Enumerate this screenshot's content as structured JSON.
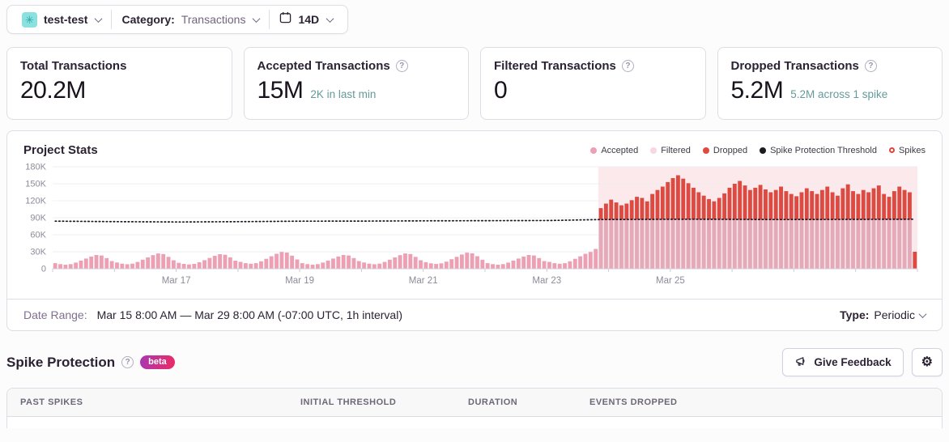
{
  "topbar": {
    "project_avatar_icon": "flower-identicon",
    "project_name": "test-test",
    "category_label": "Category:",
    "category_value": "Transactions",
    "period_value": "14D"
  },
  "stat_cards": [
    {
      "title": "Total Transactions",
      "value": "20.2M",
      "has_help": false,
      "sub": ""
    },
    {
      "title": "Accepted Transactions",
      "value": "15M",
      "has_help": true,
      "sub": "2K in last min"
    },
    {
      "title": "Filtered Transactions",
      "value": "0",
      "has_help": true,
      "sub": ""
    },
    {
      "title": "Dropped Transactions",
      "value": "5.2M",
      "has_help": true,
      "sub": "5.2M across 1 spike"
    }
  ],
  "chart_footer": {
    "date_range_label": "Date Range:",
    "date_range_value": "Mar 15 8:00 AM — Mar 29 8:00 AM (-07:00 UTC, 1h interval)",
    "type_label": "Type:",
    "type_value": "Periodic"
  },
  "spike_section": {
    "title": "Spike Protection",
    "badge": "beta",
    "feedback_button": "Give Feedback"
  },
  "table": {
    "headers": [
      "Past Spikes",
      "Initial Threshold",
      "Duration",
      "Events Dropped"
    ]
  },
  "chart_data": {
    "type": "bar",
    "title": "Project Stats",
    "unit": "K transactions per hour",
    "x_start": "Mar 15 8:00 AM",
    "x_end": "Mar 29 8:00 AM",
    "total_days": 14,
    "ylim": [
      0,
      180
    ],
    "yticks": [
      {
        "label": "180K",
        "value": 180
      },
      {
        "label": "150K",
        "value": 150
      },
      {
        "label": "120K",
        "value": 120
      },
      {
        "label": "90K",
        "value": 90
      },
      {
        "label": "60K",
        "value": 60
      },
      {
        "label": "30K",
        "value": 30
      },
      {
        "label": "0",
        "value": 0
      }
    ],
    "xticks": [
      {
        "label": "Mar 17",
        "day": 2
      },
      {
        "label": "Mar 19",
        "day": 4
      },
      {
        "label": "Mar 21",
        "day": 6
      },
      {
        "label": "Mar 23",
        "day": 8
      },
      {
        "label": "Mar 25",
        "day": 10
      }
    ],
    "legend": [
      {
        "label": "Accepted",
        "marker": "dot",
        "color": "#eda0b3"
      },
      {
        "label": "Filtered",
        "marker": "dot",
        "color": "#f8d7e0"
      },
      {
        "label": "Dropped",
        "marker": "dot",
        "color": "#dd4a41"
      },
      {
        "label": "Spike Protection Threshold",
        "marker": "dot",
        "color": "#1c1a21"
      },
      {
        "label": "Spikes",
        "marker": "ring",
        "color": "#e0423c"
      }
    ],
    "colors": {
      "accepted": "#eda0b3",
      "accepted_in_spike": "#e5aab9",
      "dropped": "#dd4a41",
      "threshold": "#1c1a21",
      "spike_bg": "#fbe9eb",
      "grid": "#efedf2",
      "axis": "#d1ccd9",
      "tick_label": "#8f8a99"
    },
    "spike_region": {
      "start_index": 106,
      "end_index": 167
    },
    "accepted": [
      9.9,
      8.1,
      7.2,
      8.1,
      10.8,
      14.4,
      18,
      21.6,
      24.3,
      23.4,
      18.9,
      13.5,
      11,
      9,
      8,
      9,
      12,
      16,
      20,
      24,
      27,
      26,
      21,
      15,
      10.5,
      8.6,
      7.6,
      8.6,
      11.4,
      15.2,
      19,
      22.8,
      25.7,
      24.7,
      20,
      14.3,
      12.1,
      9.9,
      8.8,
      9.9,
      13.2,
      17.6,
      22,
      26.4,
      29.7,
      28.6,
      23.1,
      16.5,
      9.9,
      8.1,
      7.2,
      8.1,
      10.8,
      14.4,
      18,
      21.6,
      24.3,
      23.4,
      18.9,
      13.5,
      11,
      9,
      8,
      9,
      12,
      16,
      20,
      24,
      27,
      26,
      21,
      15,
      11.6,
      9.5,
      8.4,
      9.5,
      12.6,
      16.8,
      21,
      25.2,
      28.4,
      27.3,
      22.1,
      15.8,
      9.9,
      8.1,
      7.2,
      8.1,
      10.8,
      14.4,
      18,
      21.6,
      24.3,
      23.4,
      18.9,
      13.5,
      12.1,
      9.9,
      8.8,
      9.9,
      13.2,
      17.6,
      22,
      26.4,
      29.7,
      35,
      87,
      87,
      87,
      87,
      87,
      87,
      87,
      87,
      87,
      87,
      87,
      87,
      87,
      87,
      87,
      87,
      87,
      87,
      87,
      87,
      87,
      87,
      87,
      87,
      87,
      87,
      87,
      87,
      87,
      87,
      87,
      87,
      87,
      87,
      87,
      87,
      87,
      87,
      87,
      87,
      87,
      87,
      87,
      87,
      87,
      87,
      87,
      87,
      87,
      87,
      87,
      87,
      87,
      87,
      87,
      87,
      87,
      87,
      87,
      87,
      87,
      0
    ],
    "dropped": [
      0,
      0,
      0,
      0,
      0,
      0,
      0,
      0,
      0,
      0,
      0,
      0,
      0,
      0,
      0,
      0,
      0,
      0,
      0,
      0,
      0,
      0,
      0,
      0,
      0,
      0,
      0,
      0,
      0,
      0,
      0,
      0,
      0,
      0,
      0,
      0,
      0,
      0,
      0,
      0,
      0,
      0,
      0,
      0,
      0,
      0,
      0,
      0,
      0,
      0,
      0,
      0,
      0,
      0,
      0,
      0,
      0,
      0,
      0,
      0,
      0,
      0,
      0,
      0,
      0,
      0,
      0,
      0,
      0,
      0,
      0,
      0,
      0,
      0,
      0,
      0,
      0,
      0,
      0,
      0,
      0,
      0,
      0,
      0,
      0,
      0,
      0,
      0,
      0,
      0,
      0,
      0,
      0,
      0,
      0,
      0,
      0,
      0,
      0,
      0,
      0,
      0,
      0,
      0,
      0,
      0,
      20,
      28,
      35,
      30,
      25,
      28,
      34,
      40,
      38,
      32,
      45,
      52,
      58,
      66,
      73,
      78,
      72,
      64,
      56,
      48,
      42,
      36,
      32,
      38,
      46,
      56,
      63,
      68,
      60,
      52,
      56,
      61,
      53,
      48,
      52,
      58,
      50,
      45,
      41,
      48,
      55,
      50,
      45,
      52,
      58,
      48,
      42,
      55,
      62,
      50,
      45,
      52,
      48,
      55,
      60,
      45,
      40,
      50,
      58,
      52,
      48,
      30
    ],
    "threshold_points": [
      [
        0,
        84
      ],
      [
        12,
        83.2
      ],
      [
        24,
        82.6
      ],
      [
        36,
        83.2
      ],
      [
        48,
        84
      ],
      [
        60,
        84.2
      ],
      [
        72,
        84.6
      ],
      [
        84,
        84.8
      ],
      [
        96,
        85.2
      ],
      [
        106,
        86.8
      ],
      [
        124,
        87.4
      ],
      [
        140,
        86.8
      ],
      [
        156,
        87.2
      ],
      [
        167,
        87.4
      ]
    ]
  }
}
